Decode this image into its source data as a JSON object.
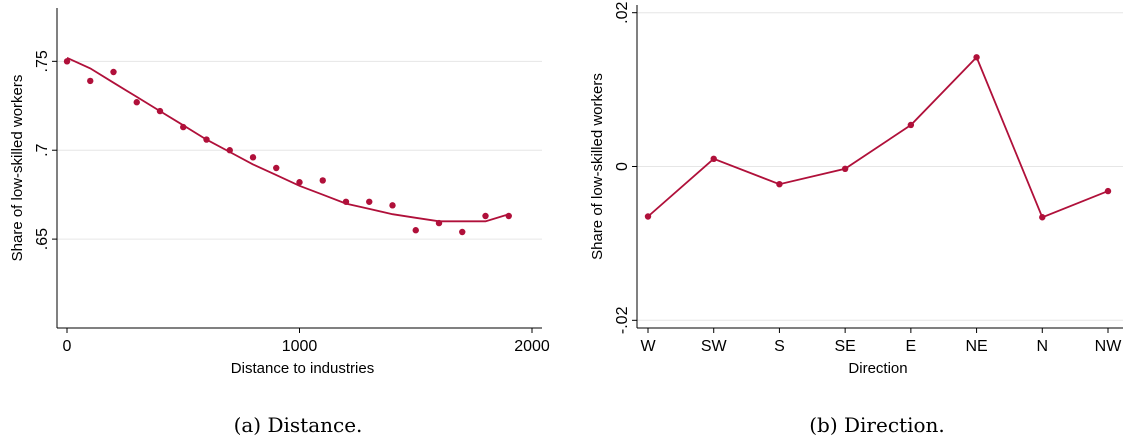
{
  "colors": {
    "series": "#b0103a",
    "grid": "#e6e6e6",
    "axis": "#000000"
  },
  "chart_data": [
    {
      "type": "scatter",
      "caption": "(a) Distance.",
      "xlabel": "Distance to industries",
      "ylabel": "Share of low-skilled workers",
      "xlim": [
        0,
        2000
      ],
      "ylim": [
        0.6,
        0.78
      ],
      "xticks": [
        0,
        1000,
        2000
      ],
      "xtick_labels": [
        "0",
        "1000",
        "2000"
      ],
      "yticks": [
        0.65,
        0.7,
        0.75
      ],
      "ytick_labels": [
        ".65",
        ".7",
        ".75"
      ],
      "grid": true,
      "points": {
        "x": [
          0,
          100,
          200,
          300,
          400,
          500,
          600,
          700,
          800,
          900,
          1000,
          1100,
          1200,
          1300,
          1400,
          1500,
          1600,
          1700,
          1800,
          1900
        ],
        "y": [
          0.75,
          0.739,
          0.744,
          0.727,
          0.722,
          0.713,
          0.706,
          0.7,
          0.696,
          0.69,
          0.682,
          0.683,
          0.671,
          0.671,
          0.669,
          0.655,
          0.659,
          0.654,
          0.663,
          0.663
        ]
      },
      "fit": {
        "x": [
          0,
          100,
          200,
          300,
          400,
          500,
          600,
          700,
          800,
          900,
          1000,
          1100,
          1200,
          1300,
          1400,
          1500,
          1600,
          1700,
          1800,
          1900
        ],
        "y": [
          0.752,
          0.746,
          0.738,
          0.73,
          0.722,
          0.714,
          0.706,
          0.699,
          0.692,
          0.686,
          0.68,
          0.675,
          0.67,
          0.667,
          0.664,
          0.662,
          0.66,
          0.66,
          0.66,
          0.664
        ]
      }
    },
    {
      "type": "line",
      "caption": "(b) Direction.",
      "xlabel": "Direction",
      "ylabel": "Share of low-skilled workers",
      "categories": [
        "W",
        "SW",
        "S",
        "SE",
        "E",
        "NE",
        "N",
        "NW"
      ],
      "values": [
        -0.0065,
        0.001,
        -0.0023,
        -0.0003,
        0.0054,
        0.0142,
        -0.0066,
        -0.0032
      ],
      "ylim": [
        -0.021,
        0.021
      ],
      "yticks": [
        -0.02,
        0,
        0.02
      ],
      "ytick_labels": [
        "-.02",
        "0",
        ".02"
      ],
      "grid": true
    }
  ]
}
